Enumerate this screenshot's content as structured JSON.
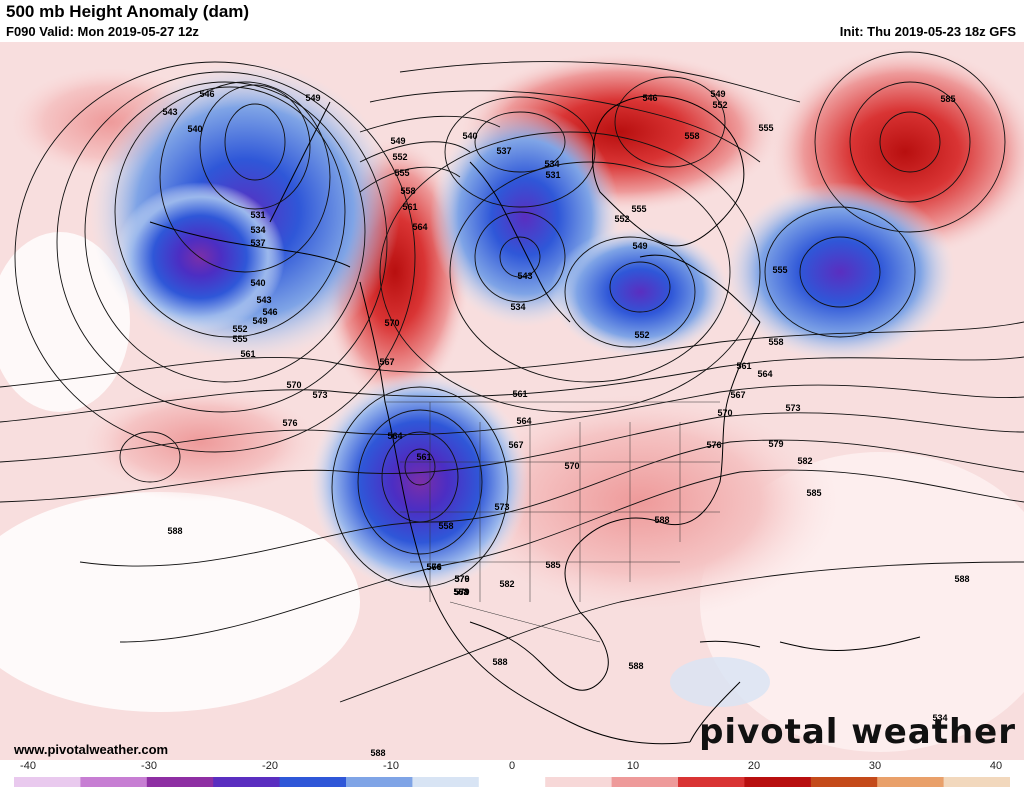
{
  "title": "500 mb Height Anomaly (dam)",
  "valid": "F090 Valid: Mon 2019-05-27 12z",
  "init": "Init: Thu 2019-05-23 18z GFS",
  "credit": "www.pivotalweather.com",
  "logo": "pivotal weather",
  "colorbar": {
    "ticks": [
      "-40",
      "-30",
      "-20",
      "-10",
      "0",
      "10",
      "20",
      "30",
      "40"
    ],
    "colors": [
      "#e9c9ee",
      "#c77ed3",
      "#8e2fa3",
      "#5a2ec0",
      "#2f57d8",
      "#7fa4e6",
      "#d8e4f4",
      "#ffffff",
      "#f7d8d8",
      "#ee9a9a",
      "#d93434",
      "#b80f0f",
      "#c44a1a",
      "#e9a06a",
      "#f2d8bd"
    ]
  },
  "contour_labels": [
    "549",
    "546",
    "543",
    "540",
    "540",
    "546",
    "549",
    "552",
    "585",
    "555",
    "558",
    "555",
    "552",
    "549",
    "531",
    "534",
    "537",
    "537",
    "531",
    "534",
    "549",
    "552",
    "555",
    "558",
    "561",
    "564",
    "540",
    "543",
    "546",
    "549",
    "552",
    "555",
    "561",
    "567",
    "570",
    "570",
    "573",
    "576",
    "543",
    "534",
    "555",
    "558",
    "561",
    "564",
    "567",
    "570",
    "573",
    "576",
    "579",
    "582",
    "585",
    "564",
    "561",
    "558",
    "561",
    "564",
    "567",
    "570",
    "573",
    "576",
    "579",
    "588",
    "585",
    "582",
    "558",
    "561",
    "564",
    "576",
    "579",
    "588",
    "588",
    "588",
    "588",
    "588",
    "534",
    "552"
  ]
}
